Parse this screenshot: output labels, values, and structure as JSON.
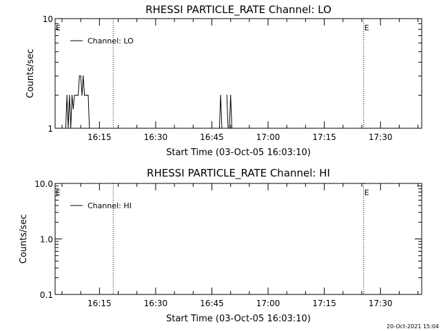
{
  "timestamp": "20-Oct-2021 15:04",
  "chart_data": [
    {
      "type": "line",
      "title": "RHESSI PARTICLE_RATE Channel: LO",
      "xlabel": "Start Time (03-Oct-05 16:03:10)",
      "ylabel": "Counts/sec",
      "yscale": "log",
      "ylim": [
        1,
        10
      ],
      "yticks": [
        {
          "v": 1,
          "label": "1"
        },
        {
          "v": 10,
          "label": "10"
        }
      ],
      "xlim": [
        "16:03:10",
        "17:41:00"
      ],
      "xticks": [
        "16:15",
        "16:30",
        "16:45",
        "17:00",
        "17:15",
        "17:30"
      ],
      "legend": "top-left",
      "series": [
        {
          "name": "Channel: LO",
          "x": [
            "16:06:00",
            "16:06:20",
            "16:06:40",
            "16:07:00",
            "16:07:20",
            "16:07:40",
            "16:08:00",
            "16:08:20",
            "16:08:40",
            "16:09:20",
            "16:09:40",
            "16:10:00",
            "16:10:20",
            "16:10:40",
            "16:11:00",
            "16:11:20",
            "16:11:40",
            "16:12:00",
            "16:12:20",
            "16:47:00",
            "16:47:20",
            "16:47:40",
            "16:49:00",
            "16:49:20",
            "16:49:40",
            "16:50:00",
            "16:50:20"
          ],
          "y": [
            1,
            2,
            1,
            2,
            1,
            2,
            1.5,
            2,
            2,
            2,
            3,
            3,
            2,
            3,
            2,
            2,
            2,
            2,
            1,
            1,
            2,
            1,
            2,
            1,
            1,
            2,
            1
          ]
        }
      ],
      "markers": [
        {
          "time": "16:03:10",
          "label": "E",
          "line": false
        },
        {
          "time": "16:18:40",
          "label": "",
          "line": true
        },
        {
          "time": "17:25:30",
          "label": "E",
          "line": true
        },
        {
          "time": "17:41:00",
          "label": "",
          "line": true
        }
      ]
    },
    {
      "type": "line",
      "title": "RHESSI PARTICLE_RATE Channel: HI",
      "xlabel": "Start Time (03-Oct-05 16:03:10)",
      "ylabel": "Counts/sec",
      "yscale": "log",
      "ylim": [
        0.1,
        10
      ],
      "yticks": [
        {
          "v": 0.1,
          "label": "0.1"
        },
        {
          "v": 1,
          "label": "1.0"
        },
        {
          "v": 10,
          "label": "10.0"
        }
      ],
      "xlim": [
        "16:03:10",
        "17:41:00"
      ],
      "xticks": [
        "16:15",
        "16:30",
        "16:45",
        "17:00",
        "17:15",
        "17:30"
      ],
      "legend": "top-left",
      "series": [
        {
          "name": "Channel: HI",
          "x": [],
          "y": []
        }
      ],
      "markers": [
        {
          "time": "16:03:10",
          "label": "E",
          "line": false
        },
        {
          "time": "16:18:40",
          "label": "",
          "line": true
        },
        {
          "time": "17:25:30",
          "label": "E",
          "line": true
        },
        {
          "time": "17:41:00",
          "label": "",
          "line": true
        }
      ]
    }
  ]
}
